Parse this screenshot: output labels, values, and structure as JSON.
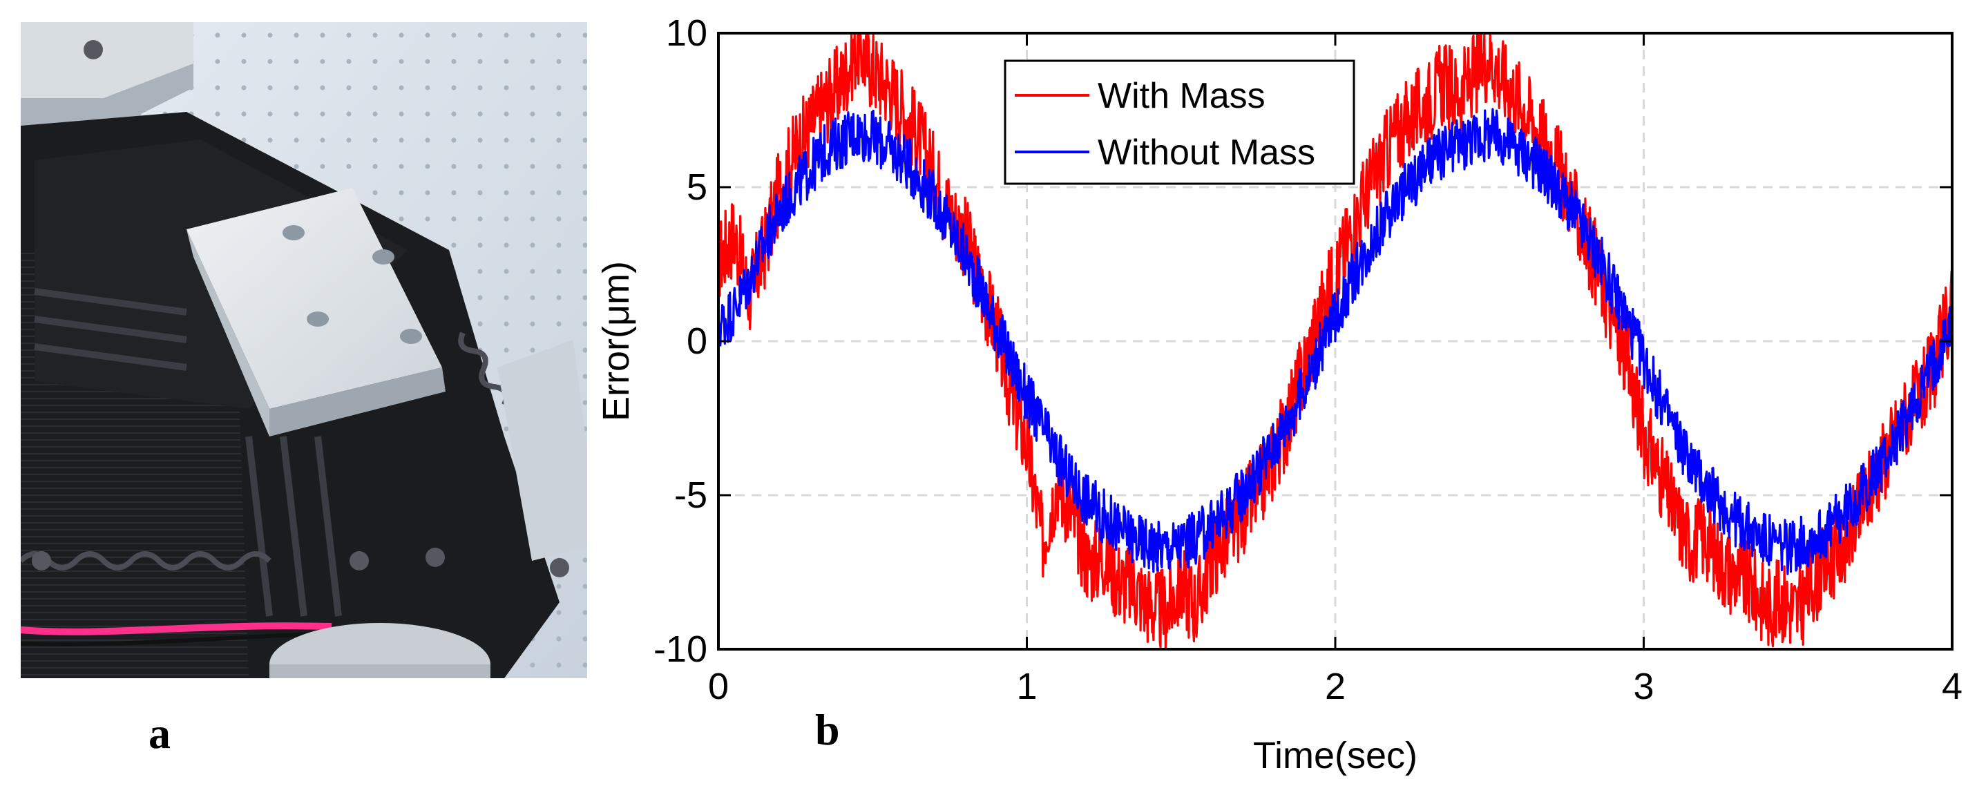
{
  "panels": {
    "a": {
      "letter": "a"
    },
    "b": {
      "letter": "b"
    }
  },
  "colors": {
    "with_mass": "#ff0000",
    "without_mass": "#0000ff",
    "grid": "#d9d9d9"
  },
  "chart_data": {
    "type": "line",
    "title": "",
    "xlabel": "Time(sec)",
    "ylabel": "Error(μm)",
    "xlim": [
      0,
      4
    ],
    "ylim": [
      -10,
      10
    ],
    "xticks": [
      0,
      1,
      2,
      3,
      4
    ],
    "xtick_labels": [
      "0",
      "1",
      "2",
      "3",
      "4"
    ],
    "yticks": [
      10,
      5,
      0,
      -5,
      -10
    ],
    "ytick_labels": [
      "10",
      "5",
      "0",
      "-5",
      "-10"
    ],
    "grid": true,
    "legend_position": "top-center",
    "series": [
      {
        "name": "With Mass",
        "color": "#ff0000",
        "x": [
          0.0,
          0.05,
          0.1,
          0.15,
          0.2,
          0.25,
          0.3,
          0.35,
          0.4,
          0.45,
          0.5,
          0.55,
          0.6,
          0.65,
          0.7,
          0.75,
          0.8,
          0.85,
          0.9,
          0.95,
          1.0,
          1.05,
          1.1,
          1.15,
          1.2,
          1.25,
          1.3,
          1.35,
          1.4,
          1.45,
          1.5,
          1.55,
          1.6,
          1.65,
          1.7,
          1.75,
          1.8,
          1.85,
          1.9,
          1.95,
          2.0,
          2.05,
          2.1,
          2.15,
          2.2,
          2.25,
          2.3,
          2.35,
          2.4,
          2.45,
          2.5,
          2.55,
          2.6,
          2.65,
          2.7,
          2.75,
          2.8,
          2.85,
          2.9,
          2.95,
          3.0,
          3.05,
          3.1,
          3.15,
          3.2,
          3.25,
          3.3,
          3.35,
          3.4,
          3.45,
          3.5,
          3.55,
          3.6,
          3.65,
          3.7,
          3.75,
          3.8,
          3.85,
          3.9,
          3.95,
          4.0
        ],
        "values": [
          2.6,
          3.5,
          1.5,
          3.0,
          5.0,
          6.2,
          7.0,
          7.8,
          8.4,
          9.6,
          8.8,
          8.3,
          7.5,
          6.6,
          5.4,
          4.2,
          3.4,
          1.8,
          0.4,
          -1.8,
          -3.4,
          -6.5,
          -4.5,
          -5.8,
          -7.2,
          -7.0,
          -7.8,
          -8.0,
          -8.6,
          -8.8,
          -7.9,
          -8.6,
          -7.0,
          -6.4,
          -5.6,
          -4.9,
          -3.8,
          -2.5,
          -0.8,
          0.8,
          2.2,
          3.5,
          4.8,
          5.8,
          6.8,
          7.3,
          7.8,
          8.4,
          8.0,
          8.6,
          9.3,
          8.4,
          7.8,
          7.0,
          6.2,
          5.0,
          3.6,
          2.4,
          0.7,
          -0.9,
          -3.0,
          -4.2,
          -5.6,
          -6.5,
          -6.3,
          -7.2,
          -7.6,
          -8.0,
          -8.6,
          -8.4,
          -8.8,
          -7.8,
          -7.2,
          -6.5,
          -5.6,
          -4.4,
          -3.4,
          -2.4,
          -1.8,
          -0.6,
          1.2
        ]
      },
      {
        "name": "Without Mass",
        "color": "#0000ff",
        "x": [
          0.0,
          0.05,
          0.1,
          0.15,
          0.2,
          0.25,
          0.3,
          0.35,
          0.4,
          0.45,
          0.5,
          0.55,
          0.6,
          0.65,
          0.7,
          0.75,
          0.8,
          0.85,
          0.9,
          0.95,
          1.0,
          1.05,
          1.1,
          1.15,
          1.2,
          1.25,
          1.3,
          1.35,
          1.4,
          1.45,
          1.5,
          1.55,
          1.6,
          1.65,
          1.7,
          1.75,
          1.8,
          1.85,
          1.9,
          1.95,
          2.0,
          2.05,
          2.1,
          2.15,
          2.2,
          2.25,
          2.3,
          2.35,
          2.4,
          2.45,
          2.5,
          2.55,
          2.6,
          2.65,
          2.7,
          2.75,
          2.8,
          2.85,
          2.9,
          2.95,
          3.0,
          3.05,
          3.1,
          3.15,
          3.2,
          3.25,
          3.3,
          3.35,
          3.4,
          3.45,
          3.5,
          3.55,
          3.6,
          3.65,
          3.7,
          3.75,
          3.8,
          3.85,
          3.9,
          3.95,
          4.0
        ],
        "values": [
          0.5,
          1.0,
          2.0,
          3.2,
          4.2,
          5.0,
          5.6,
          6.2,
          6.5,
          6.8,
          6.6,
          6.3,
          5.9,
          5.3,
          4.6,
          3.7,
          2.8,
          1.7,
          0.5,
          -0.7,
          -1.8,
          -2.8,
          -3.8,
          -4.6,
          -5.2,
          -5.7,
          -6.1,
          -6.4,
          -6.6,
          -6.7,
          -6.6,
          -6.4,
          -6.0,
          -5.5,
          -4.9,
          -4.2,
          -3.4,
          -2.5,
          -1.5,
          -0.3,
          0.8,
          1.9,
          2.9,
          3.8,
          4.6,
          5.2,
          5.7,
          6.1,
          6.4,
          6.6,
          6.7,
          6.5,
          6.2,
          5.8,
          5.2,
          4.5,
          3.7,
          2.8,
          1.7,
          0.6,
          -0.6,
          -1.8,
          -2.9,
          -3.9,
          -4.7,
          -5.3,
          -5.8,
          -6.2,
          -6.5,
          -6.7,
          -6.6,
          -6.4,
          -6.1,
          -5.6,
          -5.0,
          -4.3,
          -3.5,
          -2.6,
          -1.6,
          -0.5,
          0.6
        ]
      }
    ]
  }
}
